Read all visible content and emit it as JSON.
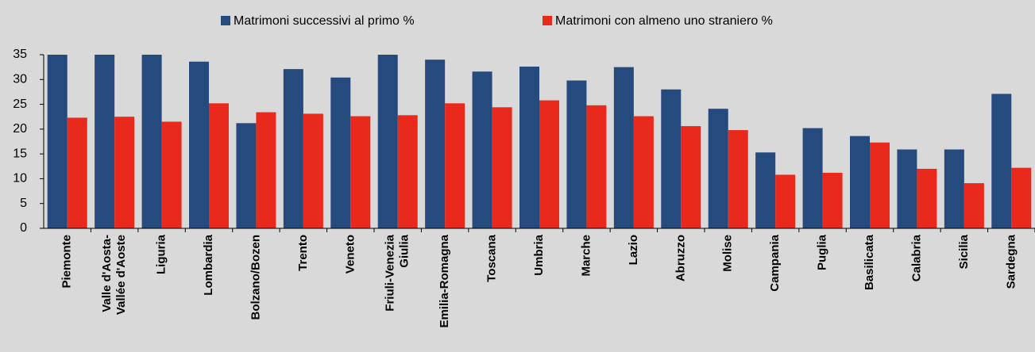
{
  "chart_data": {
    "type": "bar",
    "categories": [
      "Piemonte",
      "Valle d'Aosta-\nVallée d'Aoste",
      "Liguria",
      "Lombardia",
      "Bolzano/Bozen",
      "Trento",
      "Veneto",
      "Friuli-Venezia\nGiulia",
      "Emilia-Romagna",
      "Toscana",
      "Umbria",
      "Marche",
      "Lazio",
      "Abruzzo",
      "Molise",
      "Campania",
      "Puglia",
      "Basilicata",
      "Calabria",
      "Sicilia",
      "Sardegna"
    ],
    "series": [
      {
        "name": "Matrimoni successivi al primo %",
        "color": "#254a7d",
        "values": [
          35,
          35,
          35,
          33.6,
          21.2,
          32.1,
          30.4,
          35,
          34,
          31.6,
          32.6,
          29.8,
          32.5,
          28,
          24.1,
          15.3,
          20.2,
          18.6,
          15.9,
          15.9,
          27.1
        ]
      },
      {
        "name": "Matrimoni con almeno uno straniero %",
        "color": "#e8291c",
        "values": [
          22.3,
          22.5,
          21.5,
          25.2,
          23.4,
          23.1,
          22.6,
          22.8,
          25.2,
          24.4,
          25.8,
          24.8,
          22.6,
          20.6,
          19.8,
          10.8,
          11.2,
          17.3,
          12.0,
          9.1,
          12.2
        ]
      }
    ],
    "ylim": [
      0,
      35
    ],
    "yticks": [
      0,
      5,
      10,
      15,
      20,
      25,
      30,
      35
    ],
    "grid": false,
    "legend": "top"
  }
}
